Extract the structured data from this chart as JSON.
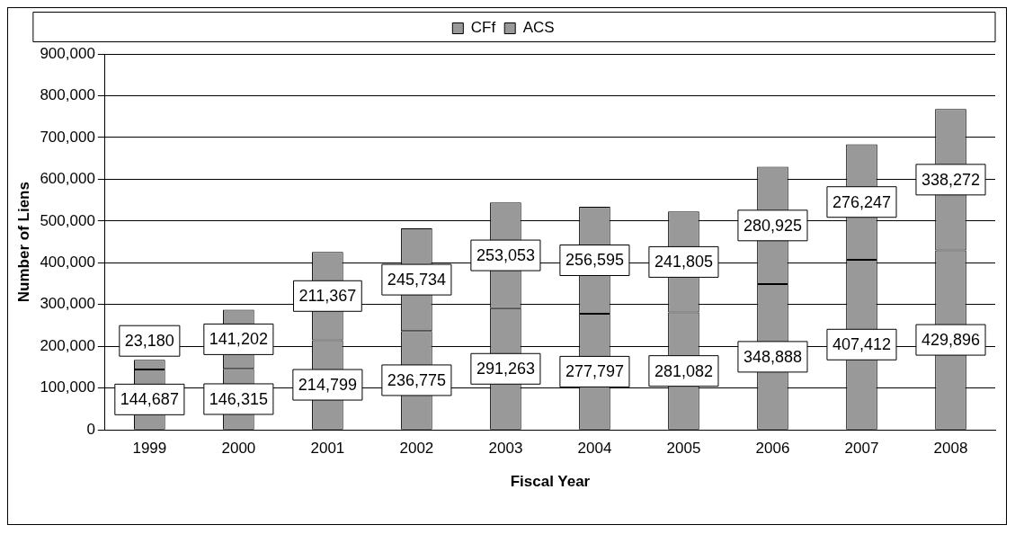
{
  "chart_data": {
    "type": "bar",
    "stacked": true,
    "xlabel": "Fiscal Year",
    "ylabel": "Number of Liens",
    "categories": [
      "1999",
      "2000",
      "2001",
      "2002",
      "2003",
      "2004",
      "2005",
      "2006",
      "2007",
      "2008"
    ],
    "series": [
      {
        "name": "CFf",
        "color": "#999999",
        "values": [
          144687,
          146315,
          214799,
          236775,
          291263,
          277797,
          281082,
          348888,
          407412,
          429896
        ],
        "value_labels": [
          "144,687",
          "146,315",
          "214,799",
          "236,775",
          "291,263",
          "277,797",
          "281,082",
          "348,888",
          "407,412",
          "429,896"
        ]
      },
      {
        "name": "ACS",
        "color": "#999999",
        "values": [
          23180,
          141202,
          211367,
          245734,
          253053,
          256595,
          241805,
          280925,
          276247,
          338272
        ],
        "value_labels": [
          "23,180",
          "141,202",
          "211,367",
          "245,734",
          "253,053",
          "256,595",
          "241,805",
          "280,925",
          "276,247",
          "338,272"
        ]
      }
    ],
    "ylim": [
      0,
      900000
    ],
    "yticks": [
      {
        "value": 0,
        "label": "0"
      },
      {
        "value": 100000,
        "label": "100,000"
      },
      {
        "value": 200000,
        "label": "200,000"
      },
      {
        "value": 300000,
        "label": "300,000"
      },
      {
        "value": 400000,
        "label": "400,000"
      },
      {
        "value": 500000,
        "label": "500,000"
      },
      {
        "value": 600000,
        "label": "600,000"
      },
      {
        "value": 700000,
        "label": "700,000"
      },
      {
        "value": 800000,
        "label": "800,000"
      },
      {
        "value": 900000,
        "label": "900,000"
      }
    ],
    "grid": "y",
    "legend": "top",
    "data_labels": true
  }
}
